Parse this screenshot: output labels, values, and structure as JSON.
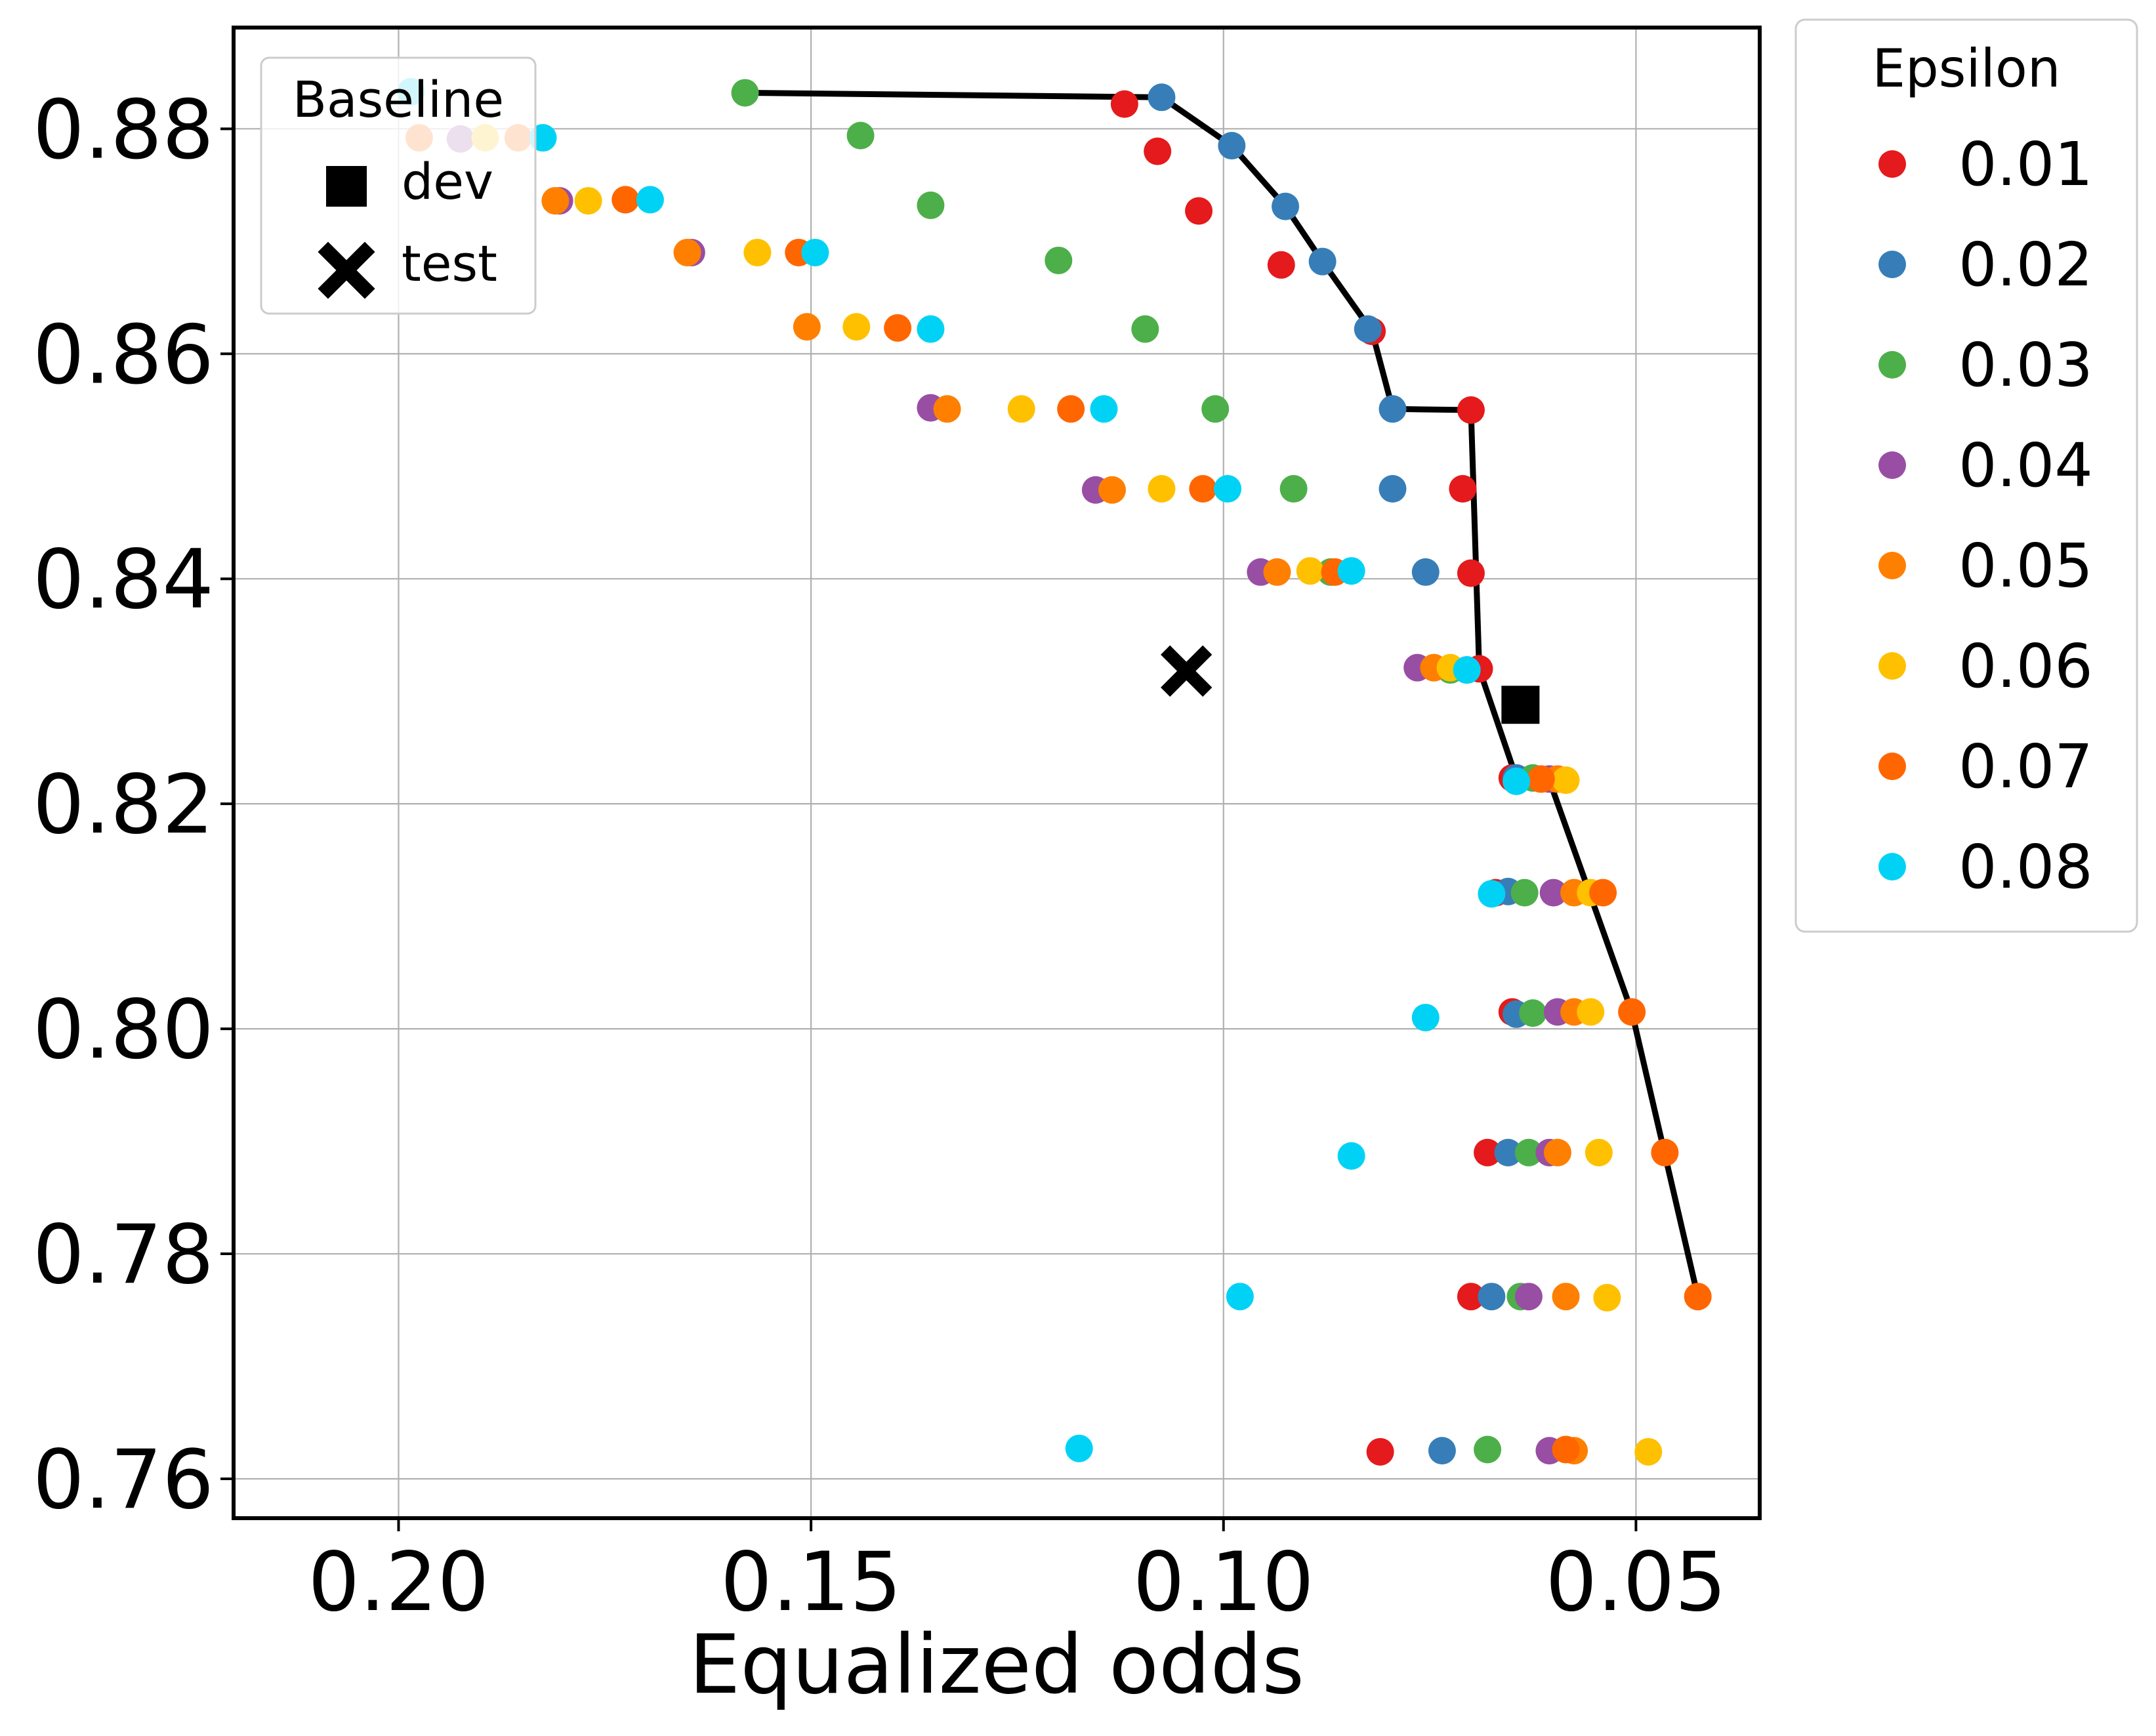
{
  "chart_data": {
    "type": "scatter",
    "xlabel": "Equalized odds",
    "ylabel": "",
    "xlim": [
      0.22,
      0.035
    ],
    "ylim": [
      0.7565,
      0.889
    ],
    "x_reversed": true,
    "grid": true,
    "x_ticks": [
      0.2,
      0.15,
      0.1,
      0.05
    ],
    "x_tick_labels": [
      "0.20",
      "0.15",
      "0.10",
      "0.05"
    ],
    "y_ticks": [
      0.76,
      0.78,
      0.8,
      0.82,
      0.84,
      0.86,
      0.88
    ],
    "y_tick_labels": [
      "0.76",
      "0.78",
      "0.80",
      "0.82",
      "0.84",
      "0.86",
      "0.88"
    ],
    "legend": {
      "title": "Epsilon",
      "placement": "outside-right",
      "entries": [
        {
          "label": "0.01",
          "color": "#e41a1c"
        },
        {
          "label": "0.02",
          "color": "#377eb8"
        },
        {
          "label": "0.03",
          "color": "#4daf4a"
        },
        {
          "label": "0.04",
          "color": "#984ea3"
        },
        {
          "label": "0.05",
          "color": "#ff7f00"
        },
        {
          "label": "0.06",
          "color": "#ffc000"
        },
        {
          "label": "0.07",
          "color": "#ff6600"
        },
        {
          "label": "0.08",
          "color": "#00d2f5"
        }
      ]
    },
    "baseline_legend": {
      "title": "Baseline",
      "placement": "top-left",
      "entries": [
        {
          "label": "dev",
          "marker": "square"
        },
        {
          "label": "test",
          "marker": "x"
        }
      ]
    },
    "series": [
      {
        "name": "0.01",
        "color": "#e41a1c",
        "points": [
          [
            0.112,
            0.8822
          ],
          [
            0.108,
            0.878
          ],
          [
            0.103,
            0.8727
          ],
          [
            0.093,
            0.8679
          ],
          [
            0.082,
            0.862
          ],
          [
            0.07,
            0.855
          ],
          [
            0.071,
            0.848
          ],
          [
            0.07,
            0.8405
          ],
          [
            0.069,
            0.832
          ],
          [
            0.065,
            0.8223
          ],
          [
            0.067,
            0.8121
          ],
          [
            0.065,
            0.8015
          ],
          [
            0.068,
            0.789
          ],
          [
            0.07,
            0.7762
          ],
          [
            0.081,
            0.7624
          ]
        ]
      },
      {
        "name": "0.02",
        "color": "#377eb8",
        "points": [
          [
            0.1075,
            0.8828
          ],
          [
            0.099,
            0.8785
          ],
          [
            0.0925,
            0.8731
          ],
          [
            0.088,
            0.8682
          ],
          [
            0.0825,
            0.8622
          ],
          [
            0.0795,
            0.8551
          ],
          [
            0.0795,
            0.848
          ],
          [
            0.0755,
            0.8406
          ],
          [
            0.0705,
            0.8319
          ],
          [
            0.0645,
            0.8223
          ],
          [
            0.0655,
            0.8122
          ],
          [
            0.0645,
            0.8013
          ],
          [
            0.0655,
            0.789
          ],
          [
            0.0675,
            0.7762
          ],
          [
            0.0735,
            0.7625
          ]
        ]
      },
      {
        "name": "0.03",
        "color": "#4daf4a",
        "points": [
          [
            0.158,
            0.8832
          ],
          [
            0.144,
            0.8794
          ],
          [
            0.1355,
            0.8732
          ],
          [
            0.12,
            0.8683
          ],
          [
            0.1095,
            0.8622
          ],
          [
            0.101,
            0.8551
          ],
          [
            0.0915,
            0.848
          ],
          [
            0.087,
            0.8406
          ],
          [
            0.0725,
            0.8319
          ],
          [
            0.0625,
            0.8223
          ],
          [
            0.0635,
            0.8121
          ],
          [
            0.0625,
            0.8014
          ],
          [
            0.063,
            0.789
          ],
          [
            0.064,
            0.7762
          ],
          [
            0.068,
            0.7626
          ]
        ]
      },
      {
        "name": "0.04",
        "color": "#984ea3",
        "points": [
          [
            0.1925,
            0.8791
          ],
          [
            0.1805,
            0.8736
          ],
          [
            0.1645,
            0.869
          ],
          [
            0.1355,
            0.8552
          ],
          [
            0.1155,
            0.8479
          ],
          [
            0.0955,
            0.8406
          ],
          [
            0.0765,
            0.8321
          ],
          [
            0.0605,
            0.8222
          ],
          [
            0.06,
            0.8121
          ],
          [
            0.0595,
            0.8015
          ],
          [
            0.0605,
            0.789
          ],
          [
            0.063,
            0.7762
          ],
          [
            0.0605,
            0.7625
          ]
        ]
      },
      {
        "name": "0.05",
        "color": "#ff7f00",
        "points": [
          [
            0.181,
            0.8736
          ],
          [
            0.165,
            0.869
          ],
          [
            0.1505,
            0.8624
          ],
          [
            0.1335,
            0.8551
          ],
          [
            0.1135,
            0.8479
          ],
          [
            0.0935,
            0.8406
          ],
          [
            0.0745,
            0.8321
          ],
          [
            0.0595,
            0.8222
          ],
          [
            0.0575,
            0.8121
          ],
          [
            0.0575,
            0.8015
          ],
          [
            0.0595,
            0.789
          ],
          [
            0.0585,
            0.7762
          ],
          [
            0.0575,
            0.7625
          ]
        ]
      },
      {
        "name": "0.06",
        "color": "#ffc000",
        "points": [
          [
            0.1895,
            0.8792
          ],
          [
            0.177,
            0.8736
          ],
          [
            0.1565,
            0.869
          ],
          [
            0.1445,
            0.8624
          ],
          [
            0.1245,
            0.8551
          ],
          [
            0.1075,
            0.848
          ],
          [
            0.0895,
            0.8407
          ],
          [
            0.0725,
            0.8321
          ],
          [
            0.0585,
            0.8221
          ],
          [
            0.0555,
            0.8121
          ],
          [
            0.0555,
            0.8015
          ],
          [
            0.0545,
            0.789
          ],
          [
            0.0535,
            0.7761
          ],
          [
            0.0485,
            0.7624
          ]
        ]
      },
      {
        "name": "0.07",
        "color": "#ff6600",
        "points": [
          [
            0.1975,
            0.8792
          ],
          [
            0.1855,
            0.8792
          ],
          [
            0.1725,
            0.8737
          ],
          [
            0.1515,
            0.869
          ],
          [
            0.1395,
            0.8623
          ],
          [
            0.1185,
            0.8551
          ],
          [
            0.1025,
            0.848
          ],
          [
            0.0865,
            0.8406
          ],
          [
            0.0615,
            0.8222
          ],
          [
            0.054,
            0.8121
          ],
          [
            0.0505,
            0.8015
          ],
          [
            0.0465,
            0.789
          ],
          [
            0.0425,
            0.7762
          ],
          [
            0.0585,
            0.7626
          ]
        ]
      },
      {
        "name": "0.08",
        "color": "#00d2f5",
        "points": [
          [
            0.1985,
            0.8833
          ],
          [
            0.1825,
            0.8792
          ],
          [
            0.1695,
            0.8737
          ],
          [
            0.1495,
            0.869
          ],
          [
            0.1355,
            0.8622
          ],
          [
            0.1145,
            0.8551
          ],
          [
            0.0995,
            0.848
          ],
          [
            0.0845,
            0.8407
          ],
          [
            0.0705,
            0.8319
          ],
          [
            0.0645,
            0.822
          ],
          [
            0.0675,
            0.812
          ],
          [
            0.0755,
            0.801
          ],
          [
            0.0845,
            0.7887
          ],
          [
            0.098,
            0.7762
          ],
          [
            0.1175,
            0.7627
          ]
        ]
      }
    ],
    "frontier": {
      "color": "#000000",
      "points": [
        [
          0.158,
          0.8832
        ],
        [
          0.1075,
          0.8828
        ],
        [
          0.099,
          0.8785
        ],
        [
          0.0925,
          0.8731
        ],
        [
          0.088,
          0.8682
        ],
        [
          0.082,
          0.862
        ],
        [
          0.0795,
          0.8551
        ],
        [
          0.07,
          0.855
        ],
        [
          0.069,
          0.832
        ],
        [
          0.0645,
          0.8223
        ],
        [
          0.0605,
          0.8221
        ],
        [
          0.0505,
          0.8015
        ],
        [
          0.0425,
          0.7762
        ]
      ]
    },
    "baselines": [
      {
        "label": "dev",
        "marker": "square",
        "x": 0.064,
        "y": 0.8288
      },
      {
        "label": "test",
        "marker": "x",
        "x": 0.1045,
        "y": 0.8318
      }
    ]
  }
}
